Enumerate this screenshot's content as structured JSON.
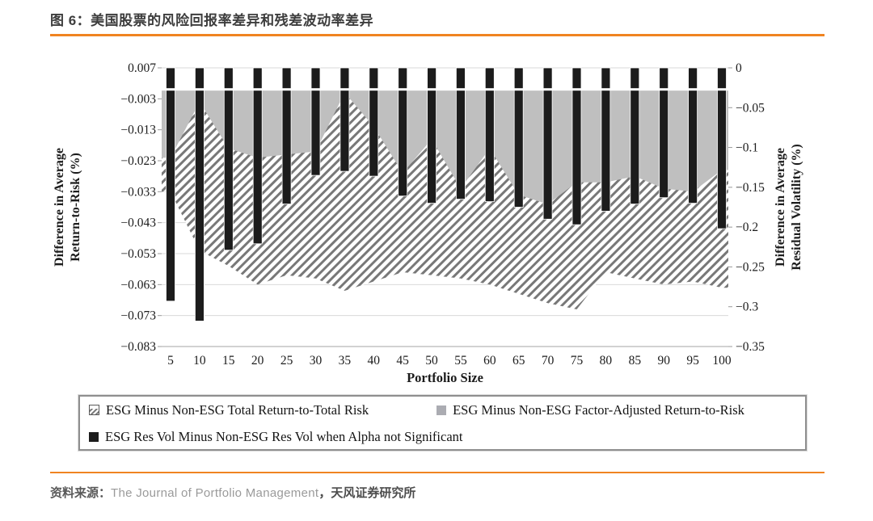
{
  "title": "图 6：美国股票的风险回报率差异和残差波动率差异",
  "source": {
    "prefix": "资料来源：",
    "journal": "The Journal of Portfolio Management",
    "suffix": "，天风证券研究所"
  },
  "colors": {
    "accent_orange": "#f08421",
    "bar_black": "#1c1c1c",
    "area_gray": "#bfbfbf",
    "hatch_stroke": "#787878",
    "gridline": "#d9d9d9",
    "axis_line": "#c4c4c4",
    "tick_mark": "#9b9b9b",
    "chart_text": "#1c1c1c"
  },
  "chart_data": {
    "type": "combo-area-bar",
    "x": [
      5,
      10,
      15,
      20,
      25,
      30,
      35,
      40,
      45,
      50,
      55,
      60,
      65,
      70,
      75,
      80,
      85,
      90,
      95,
      100
    ],
    "x_tick_labels": [
      "5",
      "10",
      "15",
      "20",
      "25",
      "30",
      "35",
      "40",
      "45",
      "50",
      "55",
      "60",
      "65",
      "70",
      "75",
      "80",
      "85",
      "90",
      "95",
      "100"
    ],
    "xlabel": "Portfolio Size",
    "grid": "horizontal",
    "legend_position": "bottom-box",
    "left_axis": {
      "title_line1": "Difference in Average",
      "title_line2": "Return-to-Risk (%)",
      "max": 0.007,
      "min": -0.083,
      "tick_values": [
        0.007,
        -0.003,
        -0.013,
        -0.023,
        -0.033,
        -0.043,
        -0.053,
        -0.063,
        -0.073,
        -0.083
      ],
      "tick_labels": [
        "0.007",
        "−0.003",
        "−0.013",
        "−0.023",
        "−0.033",
        "−0.043",
        "−0.053",
        "−0.063",
        "−0.073",
        "−0.083"
      ]
    },
    "right_axis": {
      "title_line1": "Difference in Average",
      "title_line2": "Residual Volatility (%)",
      "max": 0,
      "min": -0.35,
      "tick_values": [
        0,
        -0.05,
        -0.1,
        -0.15,
        -0.2,
        -0.25,
        -0.3,
        -0.35
      ],
      "tick_labels": [
        "0",
        "−0.05",
        "−0.1",
        "−0.15",
        "−0.2",
        "−0.25",
        "−0.3",
        "−0.35"
      ]
    },
    "series": [
      {
        "name": "ESG Minus Non-ESG Total Return-to-Total Risk",
        "type": "area",
        "axis": "left",
        "style": "hatched",
        "values": [
          -0.033,
          -0.052,
          -0.057,
          -0.063,
          -0.06,
          -0.061,
          -0.065,
          -0.062,
          -0.059,
          -0.06,
          -0.061,
          -0.063,
          -0.066,
          -0.069,
          -0.071,
          -0.059,
          -0.061,
          -0.063,
          -0.062,
          -0.064
        ]
      },
      {
        "name": "ESG Minus Non-ESG Factor-Adjusted Return-to-Risk",
        "type": "area",
        "axis": "left",
        "style": "solid-gray",
        "values": [
          -0.022,
          -0.004,
          -0.019,
          -0.022,
          -0.021,
          -0.02,
          -0.001,
          -0.012,
          -0.027,
          -0.016,
          -0.032,
          -0.019,
          -0.034,
          -0.037,
          -0.03,
          -0.03,
          -0.028,
          -0.032,
          -0.033,
          -0.026
        ]
      },
      {
        "name": "ESG Res Vol Minus Non-ESG Res Vol when Alpha not Significant",
        "type": "bar",
        "axis": "right",
        "style": "solid-black",
        "values": [
          -0.293,
          -0.318,
          -0.229,
          -0.221,
          -0.171,
          -0.135,
          -0.13,
          -0.136,
          -0.161,
          -0.17,
          -0.165,
          -0.168,
          -0.175,
          -0.19,
          -0.197,
          -0.18,
          -0.171,
          -0.163,
          -0.17,
          -0.202
        ]
      }
    ]
  }
}
